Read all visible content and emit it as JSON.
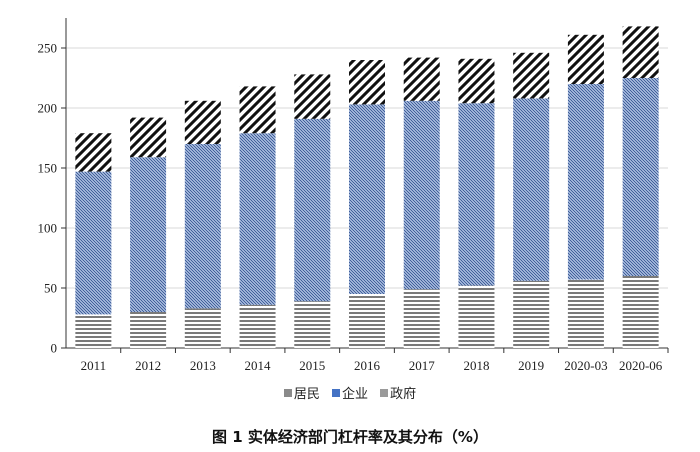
{
  "caption": "图 1   实体经济部门杠杆率及其分布（%）",
  "chart_data": {
    "type": "bar",
    "stacked": true,
    "categories": [
      "2011",
      "2012",
      "2013",
      "2014",
      "2015",
      "2016",
      "2017",
      "2018",
      "2019",
      "2020-03",
      "2020-06"
    ],
    "series": [
      {
        "name": "居民",
        "color": "#8a8a8a",
        "values": [
          28,
          30,
          33,
          36,
          39,
          45,
          49,
          52,
          56,
          57,
          60
        ]
      },
      {
        "name": "企业",
        "color": "#4472c4",
        "values": [
          119,
          129,
          137,
          143,
          152,
          158,
          157,
          152,
          152,
          163,
          165
        ]
      },
      {
        "name": "政府",
        "color": "#222222",
        "values": [
          32,
          33,
          36,
          39,
          37,
          37,
          36,
          37,
          38,
          41,
          43
        ]
      }
    ],
    "yticks": [
      0,
      50,
      100,
      150,
      200,
      250
    ],
    "ylim": [
      0,
      275
    ],
    "grid": true,
    "legend_position": "bottom"
  }
}
